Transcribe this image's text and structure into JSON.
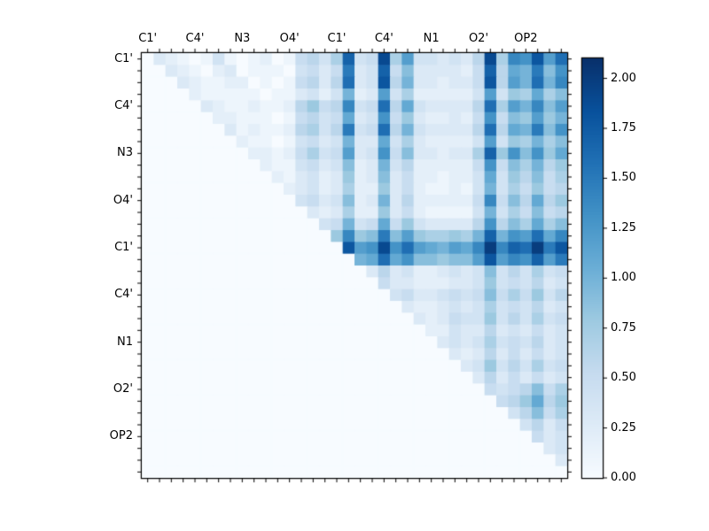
{
  "figure": {
    "background": "#ffffff",
    "frame_color": "#000000"
  },
  "chart_data": {
    "type": "heatmap",
    "colormap": "Blues",
    "n": 36,
    "tick_step": 4,
    "tick_positions": [
      0,
      4,
      8,
      12,
      16,
      20,
      24,
      28,
      32
    ],
    "x_tick_labels": [
      "C1'",
      "C4'",
      "N3",
      "O4'",
      "C1'",
      "C4'",
      "N1",
      "O2'",
      "OP2"
    ],
    "y_tick_labels": [
      "C1'",
      "C4'",
      "N3",
      "O4'",
      "C1'",
      "C4'",
      "N1",
      "O2'",
      "OP2"
    ],
    "vmin": 0.0,
    "vmax": 2.1,
    "colorbar_tick_labels": [
      "0.00",
      "0.25",
      "0.50",
      "0.75",
      "1.00",
      "1.25",
      "1.50",
      "1.75",
      "2.00"
    ],
    "colorbar_tick_values": [
      0.0,
      0.25,
      0.5,
      0.75,
      1.0,
      1.25,
      1.5,
      1.75,
      2.0
    ],
    "colormap_stops": [
      {
        "t": 0.0,
        "rgb": [
          247,
          251,
          255
        ]
      },
      {
        "t": 0.125,
        "rgb": [
          222,
          235,
          247
        ]
      },
      {
        "t": 0.25,
        "rgb": [
          198,
          219,
          239
        ]
      },
      {
        "t": 0.375,
        "rgb": [
          158,
          202,
          225
        ]
      },
      {
        "t": 0.5,
        "rgb": [
          107,
          174,
          214
        ]
      },
      {
        "t": 0.625,
        "rgb": [
          66,
          146,
          198
        ]
      },
      {
        "t": 0.75,
        "rgb": [
          33,
          113,
          181
        ]
      },
      {
        "t": 0.875,
        "rgb": [
          8,
          81,
          156
        ]
      },
      {
        "t": 1.0,
        "rgb": [
          8,
          48,
          107
        ]
      }
    ],
    "values": [
      [
        0,
        0.3,
        0.2,
        0.1,
        0,
        0.1,
        0.4,
        0.1,
        0,
        0.1,
        0.2,
        0,
        0.1,
        0.5,
        0.6,
        0.4,
        0.7,
        1.7,
        0.4,
        0.5,
        1.9,
        0.7,
        1.2,
        0.4,
        0.4,
        0.3,
        0.4,
        0.3,
        0.6,
        1.9,
        0.7,
        1.4,
        1.3,
        1.8,
        1.2,
        1.6
      ],
      [
        0,
        0,
        0.3,
        0.2,
        0.1,
        0,
        0.2,
        0.3,
        0,
        0.1,
        0.1,
        0.1,
        0,
        0.4,
        0.5,
        0.3,
        0.5,
        1.5,
        0.3,
        0.4,
        1.7,
        0.5,
        0.9,
        0.3,
        0.3,
        0.3,
        0.3,
        0.2,
        0.5,
        1.7,
        0.6,
        1.1,
        1.0,
        1.5,
        0.9,
        1.3
      ],
      [
        0,
        0,
        0,
        0.3,
        0.2,
        0.1,
        0.1,
        0.2,
        0.2,
        0,
        0.1,
        0,
        0.1,
        0.5,
        0.6,
        0.3,
        0.6,
        1.6,
        0.3,
        0.4,
        1.8,
        0.6,
        1.0,
        0.3,
        0.3,
        0.2,
        0.3,
        0.3,
        0.5,
        1.8,
        0.6,
        1.2,
        1.0,
        1.6,
        1.0,
        1.4
      ],
      [
        0,
        0,
        0,
        0,
        0.2,
        0.1,
        0.1,
        0.1,
        0.1,
        0.1,
        0,
        0.1,
        0.1,
        0.3,
        0.4,
        0.2,
        0.4,
        1.0,
        0.2,
        0.3,
        1.2,
        0.4,
        0.7,
        0.2,
        0.2,
        0.2,
        0.2,
        0.2,
        0.4,
        1.2,
        0.4,
        0.8,
        0.7,
        1.1,
        0.7,
        0.9
      ],
      [
        0,
        0,
        0,
        0,
        0,
        0.3,
        0.2,
        0.1,
        0.1,
        0.2,
        0.1,
        0.1,
        0.2,
        0.6,
        0.8,
        0.5,
        0.6,
        1.4,
        0.4,
        0.5,
        1.6,
        0.6,
        1.1,
        0.4,
        0.3,
        0.3,
        0.3,
        0.3,
        0.6,
        1.6,
        0.7,
        1.2,
        1.0,
        1.4,
        0.9,
        1.2
      ],
      [
        0,
        0,
        0,
        0,
        0,
        0,
        0.2,
        0.2,
        0.1,
        0.1,
        0.1,
        0,
        0.1,
        0.5,
        0.6,
        0.4,
        0.5,
        1.1,
        0.3,
        0.4,
        1.3,
        0.5,
        0.8,
        0.3,
        0.2,
        0.2,
        0.3,
        0.2,
        0.5,
        1.3,
        0.5,
        0.9,
        0.8,
        1.2,
        0.8,
        1.0
      ],
      [
        0,
        0,
        0,
        0,
        0,
        0,
        0,
        0.3,
        0.1,
        0.2,
        0.1,
        0.1,
        0.2,
        0.6,
        0.7,
        0.4,
        0.6,
        1.5,
        0.4,
        0.5,
        1.6,
        0.6,
        1.0,
        0.4,
        0.3,
        0.3,
        0.3,
        0.3,
        0.6,
        1.6,
        0.6,
        1.1,
        1.0,
        1.5,
        0.9,
        1.3
      ],
      [
        0,
        0,
        0,
        0,
        0,
        0,
        0,
        0,
        0.2,
        0.1,
        0.1,
        0,
        0.1,
        0.4,
        0.5,
        0.3,
        0.4,
        1.0,
        0.3,
        0.3,
        1.1,
        0.4,
        0.7,
        0.3,
        0.2,
        0.2,
        0.2,
        0.2,
        0.4,
        1.2,
        0.4,
        0.8,
        0.7,
        1.0,
        0.7,
        0.9
      ],
      [
        0,
        0,
        0,
        0,
        0,
        0,
        0,
        0,
        0,
        0.2,
        0.2,
        0.1,
        0.2,
        0.5,
        0.7,
        0.4,
        0.5,
        1.2,
        0.3,
        0.4,
        1.3,
        0.5,
        0.9,
        0.3,
        0.3,
        0.2,
        0.3,
        0.3,
        0.7,
        1.7,
        0.8,
        1.3,
        0.9,
        1.3,
        0.8,
        1.1
      ],
      [
        0,
        0,
        0,
        0,
        0,
        0,
        0,
        0,
        0,
        0,
        0.2,
        0.1,
        0.1,
        0.4,
        0.5,
        0.3,
        0.4,
        0.9,
        0.2,
        0.3,
        1.0,
        0.4,
        0.6,
        0.2,
        0.2,
        0.2,
        0.2,
        0.2,
        0.5,
        1.3,
        0.5,
        0.9,
        0.7,
        1.0,
        0.6,
        0.8
      ],
      [
        0,
        0,
        0,
        0,
        0,
        0,
        0,
        0,
        0,
        0,
        0,
        0.2,
        0.1,
        0.3,
        0.4,
        0.2,
        0.3,
        0.8,
        0.2,
        0.3,
        0.9,
        0.3,
        0.5,
        0.2,
        0.2,
        0.1,
        0.2,
        0.2,
        0.4,
        1.1,
        0.4,
        0.8,
        0.6,
        0.9,
        0.5,
        0.7
      ],
      [
        0,
        0,
        0,
        0,
        0,
        0,
        0,
        0,
        0,
        0,
        0,
        0,
        0.2,
        0.3,
        0.4,
        0.2,
        0.3,
        0.7,
        0.2,
        0.2,
        0.8,
        0.3,
        0.5,
        0.2,
        0.1,
        0.1,
        0.2,
        0.1,
        0.4,
        1.0,
        0.4,
        0.7,
        0.5,
        0.8,
        0.5,
        0.6
      ],
      [
        0,
        0,
        0,
        0,
        0,
        0,
        0,
        0,
        0,
        0,
        0,
        0,
        0,
        0.4,
        0.5,
        0.3,
        0.4,
        0.9,
        0.2,
        0.3,
        1.0,
        0.3,
        0.6,
        0.2,
        0.2,
        0.2,
        0.2,
        0.2,
        0.5,
        1.4,
        0.5,
        0.9,
        0.6,
        1.1,
        0.6,
        0.8
      ],
      [
        0,
        0,
        0,
        0,
        0,
        0,
        0,
        0,
        0,
        0,
        0,
        0,
        0,
        0,
        0.3,
        0.2,
        0.3,
        0.7,
        0.2,
        0.2,
        0.8,
        0.3,
        0.5,
        0.2,
        0.1,
        0.1,
        0.1,
        0.1,
        0.4,
        1.0,
        0.4,
        0.7,
        0.5,
        0.9,
        0.5,
        0.6
      ],
      [
        0,
        0,
        0,
        0,
        0,
        0,
        0,
        0,
        0,
        0,
        0,
        0,
        0,
        0,
        0,
        0.4,
        0.5,
        1.0,
        0.4,
        0.5,
        1.1,
        0.5,
        0.8,
        0.4,
        0.3,
        0.3,
        0.3,
        0.3,
        0.6,
        1.3,
        0.6,
        0.9,
        0.7,
        1.1,
        0.7,
        0.9
      ],
      [
        0,
        0,
        0,
        0,
        0,
        0,
        0,
        0,
        0,
        0,
        0,
        0,
        0,
        0,
        0,
        0,
        0.8,
        1.4,
        0.8,
        0.9,
        1.5,
        0.9,
        1.2,
        0.8,
        0.7,
        0.7,
        0.8,
        0.7,
        1.0,
        1.7,
        1.0,
        1.3,
        1.2,
        1.6,
        1.1,
        1.4
      ],
      [
        0,
        0,
        0,
        0,
        0,
        0,
        0,
        0,
        0,
        0,
        0,
        0,
        0,
        0,
        0,
        0,
        0,
        1.8,
        1.2,
        1.3,
        1.9,
        1.3,
        1.6,
        1.2,
        1.1,
        1.0,
        1.2,
        1.1,
        1.4,
        2.0,
        1.4,
        1.7,
        1.6,
        2.0,
        1.5,
        1.8
      ],
      [
        0,
        0,
        0,
        0,
        0,
        0,
        0,
        0,
        0,
        0,
        0,
        0,
        0,
        0,
        0,
        0,
        0,
        0,
        1.0,
        1.1,
        1.6,
        1.1,
        1.3,
        0.9,
        0.9,
        0.8,
        0.9,
        0.9,
        1.2,
        1.8,
        1.2,
        1.4,
        1.3,
        1.7,
        1.2,
        1.5
      ],
      [
        0,
        0,
        0,
        0,
        0,
        0,
        0,
        0,
        0,
        0,
        0,
        0,
        0,
        0,
        0,
        0,
        0,
        0,
        0,
        0.3,
        0.6,
        0.3,
        0.4,
        0.2,
        0.2,
        0.3,
        0.4,
        0.3,
        0.4,
        0.9,
        0.4,
        0.6,
        0.4,
        0.7,
        0.4,
        0.5
      ],
      [
        0,
        0,
        0,
        0,
        0,
        0,
        0,
        0,
        0,
        0,
        0,
        0,
        0,
        0,
        0,
        0,
        0,
        0,
        0,
        0,
        0.5,
        0.3,
        0.3,
        0.2,
        0.2,
        0.2,
        0.3,
        0.3,
        0.4,
        0.8,
        0.4,
        0.5,
        0.4,
        0.6,
        0.3,
        0.4
      ],
      [
        0,
        0,
        0,
        0,
        0,
        0,
        0,
        0,
        0,
        0,
        0,
        0,
        0,
        0,
        0,
        0,
        0,
        0,
        0,
        0,
        0,
        0.4,
        0.5,
        0.3,
        0.3,
        0.4,
        0.5,
        0.4,
        0.5,
        0.9,
        0.5,
        0.7,
        0.5,
        0.8,
        0.4,
        0.6
      ],
      [
        0,
        0,
        0,
        0,
        0,
        0,
        0,
        0,
        0,
        0,
        0,
        0,
        0,
        0,
        0,
        0,
        0,
        0,
        0,
        0,
        0,
        0,
        0.3,
        0.2,
        0.2,
        0.3,
        0.4,
        0.3,
        0.4,
        0.7,
        0.4,
        0.5,
        0.4,
        0.6,
        0.3,
        0.4
      ],
      [
        0,
        0,
        0,
        0,
        0,
        0,
        0,
        0,
        0,
        0,
        0,
        0,
        0,
        0,
        0,
        0,
        0,
        0,
        0,
        0,
        0,
        0,
        0,
        0.3,
        0.2,
        0.3,
        0.5,
        0.4,
        0.4,
        0.8,
        0.4,
        0.6,
        0.4,
        0.7,
        0.4,
        0.5
      ],
      [
        0,
        0,
        0,
        0,
        0,
        0,
        0,
        0,
        0,
        0,
        0,
        0,
        0,
        0,
        0,
        0,
        0,
        0,
        0,
        0,
        0,
        0,
        0,
        0,
        0.2,
        0.2,
        0.4,
        0.3,
        0.3,
        0.6,
        0.3,
        0.4,
        0.3,
        0.5,
        0.3,
        0.4
      ],
      [
        0,
        0,
        0,
        0,
        0,
        0,
        0,
        0,
        0,
        0,
        0,
        0,
        0,
        0,
        0,
        0,
        0,
        0,
        0,
        0,
        0,
        0,
        0,
        0,
        0,
        0.3,
        0.4,
        0.3,
        0.4,
        0.7,
        0.4,
        0.5,
        0.4,
        0.6,
        0.3,
        0.4
      ],
      [
        0,
        0,
        0,
        0,
        0,
        0,
        0,
        0,
        0,
        0,
        0,
        0,
        0,
        0,
        0,
        0,
        0,
        0,
        0,
        0,
        0,
        0,
        0,
        0,
        0,
        0,
        0.3,
        0.2,
        0.3,
        0.6,
        0.3,
        0.5,
        0.3,
        0.5,
        0.3,
        0.4
      ],
      [
        0,
        0,
        0,
        0,
        0,
        0,
        0,
        0,
        0,
        0,
        0,
        0,
        0,
        0,
        0,
        0,
        0,
        0,
        0,
        0,
        0,
        0,
        0,
        0,
        0,
        0,
        0,
        0.3,
        0.4,
        0.8,
        0.4,
        0.6,
        0.4,
        0.7,
        0.4,
        0.5
      ],
      [
        0,
        0,
        0,
        0,
        0,
        0,
        0,
        0,
        0,
        0,
        0,
        0,
        0,
        0,
        0,
        0,
        0,
        0,
        0,
        0,
        0,
        0,
        0,
        0,
        0,
        0,
        0,
        0,
        0.3,
        0.6,
        0.3,
        0.5,
        0.3,
        0.5,
        0.3,
        0.4
      ],
      [
        0,
        0,
        0,
        0,
        0,
        0,
        0,
        0,
        0,
        0,
        0,
        0,
        0,
        0,
        0,
        0,
        0,
        0,
        0,
        0,
        0,
        0,
        0,
        0,
        0,
        0,
        0,
        0,
        0,
        0.5,
        0.4,
        0.5,
        0.6,
        0.9,
        0.5,
        0.7
      ],
      [
        0,
        0,
        0,
        0,
        0,
        0,
        0,
        0,
        0,
        0,
        0,
        0,
        0,
        0,
        0,
        0,
        0,
        0,
        0,
        0,
        0,
        0,
        0,
        0,
        0,
        0,
        0,
        0,
        0,
        0,
        0.5,
        0.6,
        0.8,
        1.1,
        0.6,
        0.8
      ],
      [
        0,
        0,
        0,
        0,
        0,
        0,
        0,
        0,
        0,
        0,
        0,
        0,
        0,
        0,
        0,
        0,
        0,
        0,
        0,
        0,
        0,
        0,
        0,
        0,
        0,
        0,
        0,
        0,
        0,
        0,
        0,
        0.4,
        0.6,
        0.9,
        0.5,
        0.7
      ],
      [
        0,
        0,
        0,
        0,
        0,
        0,
        0,
        0,
        0,
        0,
        0,
        0,
        0,
        0,
        0,
        0,
        0,
        0,
        0,
        0,
        0,
        0,
        0,
        0,
        0,
        0,
        0,
        0,
        0,
        0,
        0,
        0,
        0.4,
        0.6,
        0.3,
        0.5
      ],
      [
        0,
        0,
        0,
        0,
        0,
        0,
        0,
        0,
        0,
        0,
        0,
        0,
        0,
        0,
        0,
        0,
        0,
        0,
        0,
        0,
        0,
        0,
        0,
        0,
        0,
        0,
        0,
        0,
        0,
        0,
        0,
        0,
        0,
        0.5,
        0.3,
        0.4
      ],
      [
        0,
        0,
        0,
        0,
        0,
        0,
        0,
        0,
        0,
        0,
        0,
        0,
        0,
        0,
        0,
        0,
        0,
        0,
        0,
        0,
        0,
        0,
        0,
        0,
        0,
        0,
        0,
        0,
        0,
        0,
        0,
        0,
        0,
        0,
        0.3,
        0.4
      ],
      [
        0,
        0,
        0,
        0,
        0,
        0,
        0,
        0,
        0,
        0,
        0,
        0,
        0,
        0,
        0,
        0,
        0,
        0,
        0,
        0,
        0,
        0,
        0,
        0,
        0,
        0,
        0,
        0,
        0,
        0,
        0,
        0,
        0,
        0,
        0,
        0.3
      ],
      [
        0,
        0,
        0,
        0,
        0,
        0,
        0,
        0,
        0,
        0,
        0,
        0,
        0,
        0,
        0,
        0,
        0,
        0,
        0,
        0,
        0,
        0,
        0,
        0,
        0,
        0,
        0,
        0,
        0,
        0,
        0,
        0,
        0,
        0,
        0,
        0
      ]
    ]
  }
}
